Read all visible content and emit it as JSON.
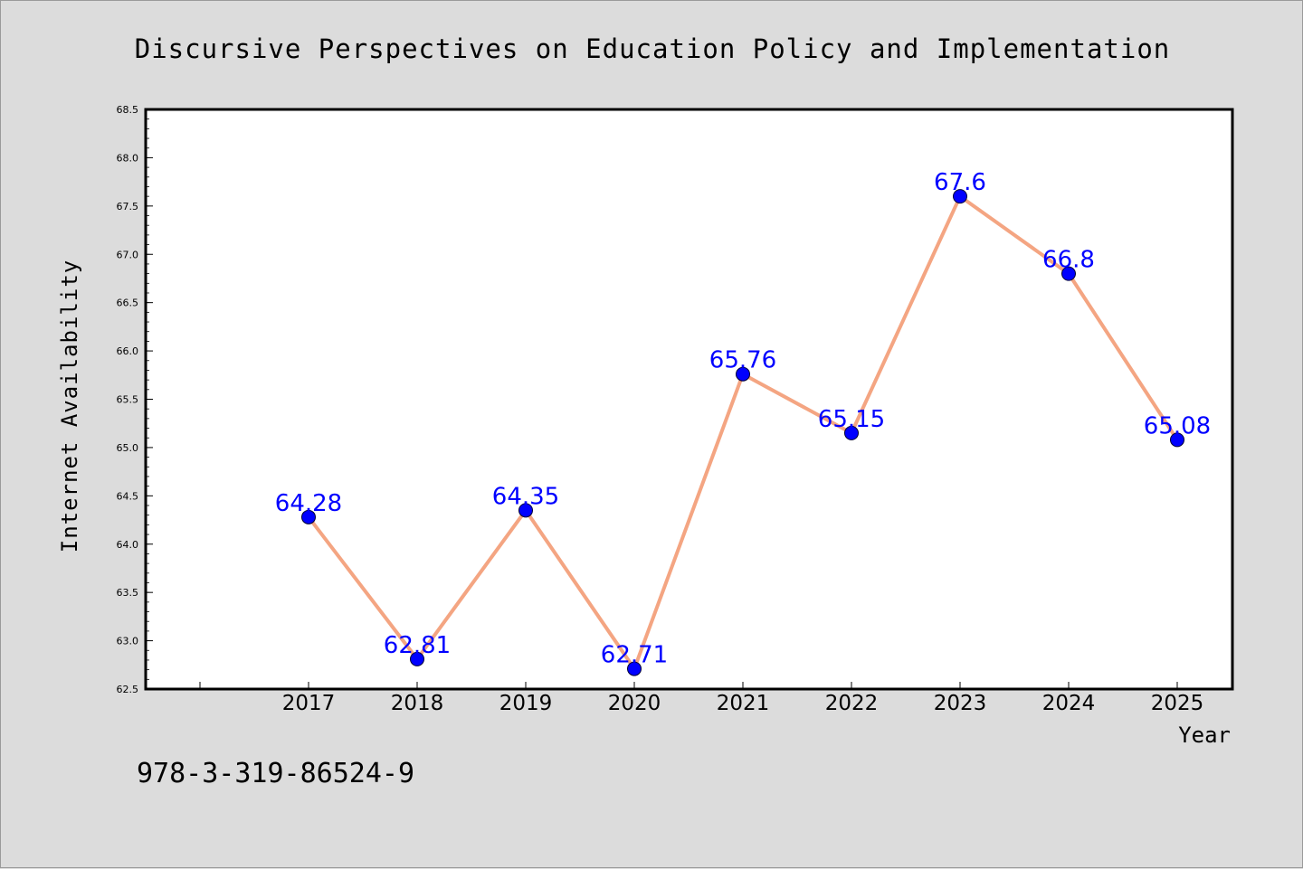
{
  "chart_data": {
    "type": "line",
    "title": "Discursive Perspectives on Education Policy and Implementation",
    "xlabel": "Year",
    "ylabel": "Internet Availability",
    "categories": [
      "2017",
      "2018",
      "2019",
      "2020",
      "2021",
      "2022",
      "2023",
      "2024",
      "2025"
    ],
    "values": [
      64.28,
      62.81,
      64.35,
      62.71,
      65.76,
      65.15,
      67.6,
      66.8,
      65.08
    ],
    "data_labels": [
      "64.28",
      "62.81",
      "64.35",
      "62.71",
      "65.76",
      "65.15",
      "67.6",
      "66.8",
      "65.08"
    ],
    "ylim": [
      62.5,
      68.5
    ],
    "yticks": [
      "62.5",
      "63.0",
      "63.5",
      "64.0",
      "64.5",
      "65.0",
      "65.5",
      "66.0",
      "66.5",
      "67.0",
      "67.5",
      "68.0",
      "68.5"
    ],
    "grid": false,
    "line_color": "#f4a582",
    "marker_color": "#0000ff",
    "label_color": "#0000ff"
  },
  "footer": {
    "isbn": "978-3-319-86524-9"
  }
}
